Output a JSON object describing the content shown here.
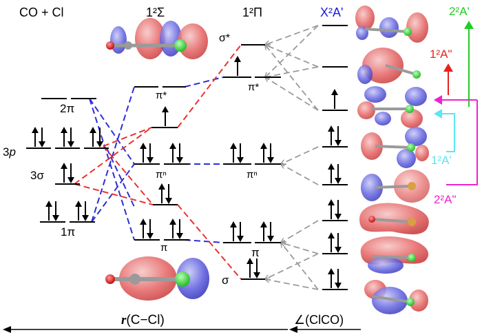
{
  "headers": {
    "reactants": "CO + Cl",
    "state_1sigma": "1²Σ",
    "state_1pi": "1²Π",
    "state_x2a": "X²A'"
  },
  "co_cl": {
    "pi_star": "2π",
    "p_orbital_prefix": "3",
    "p_orbital_italic": "p",
    "sigma": "3σ",
    "pi_bonding": "1π"
  },
  "sigma_state": {
    "pi_star": "π*",
    "pi_n": "πⁿ",
    "pi": "π"
  },
  "pi_state": {
    "sigma_star": "σ*",
    "pi_star": "π*",
    "pi_n": "πⁿ",
    "pi": "π",
    "sigma": "σ"
  },
  "transitions": {
    "t_2_2a_prime": "2²A'",
    "t_1_2a_dprime": "1²A\"",
    "t_1_2a_prime": "1²A'",
    "t_2_2a_dprime": "2²A\""
  },
  "axis": {
    "r_italic": "r",
    "r_label": "(C−Cl)",
    "angle_label": "∠(ClCO)"
  },
  "colors": {
    "red_dash": "#e8322d",
    "blue_dash": "#2c2cd8",
    "gray_dash": "#9a9a9a",
    "green": "#22cc22",
    "red": "#e82020",
    "cyan": "#5ce6ee",
    "magenta": "#ee22cc",
    "lobe_red": "#e35a5a",
    "lobe_blue": "#5a5ae0",
    "header_blue": "#1a1ad8"
  }
}
